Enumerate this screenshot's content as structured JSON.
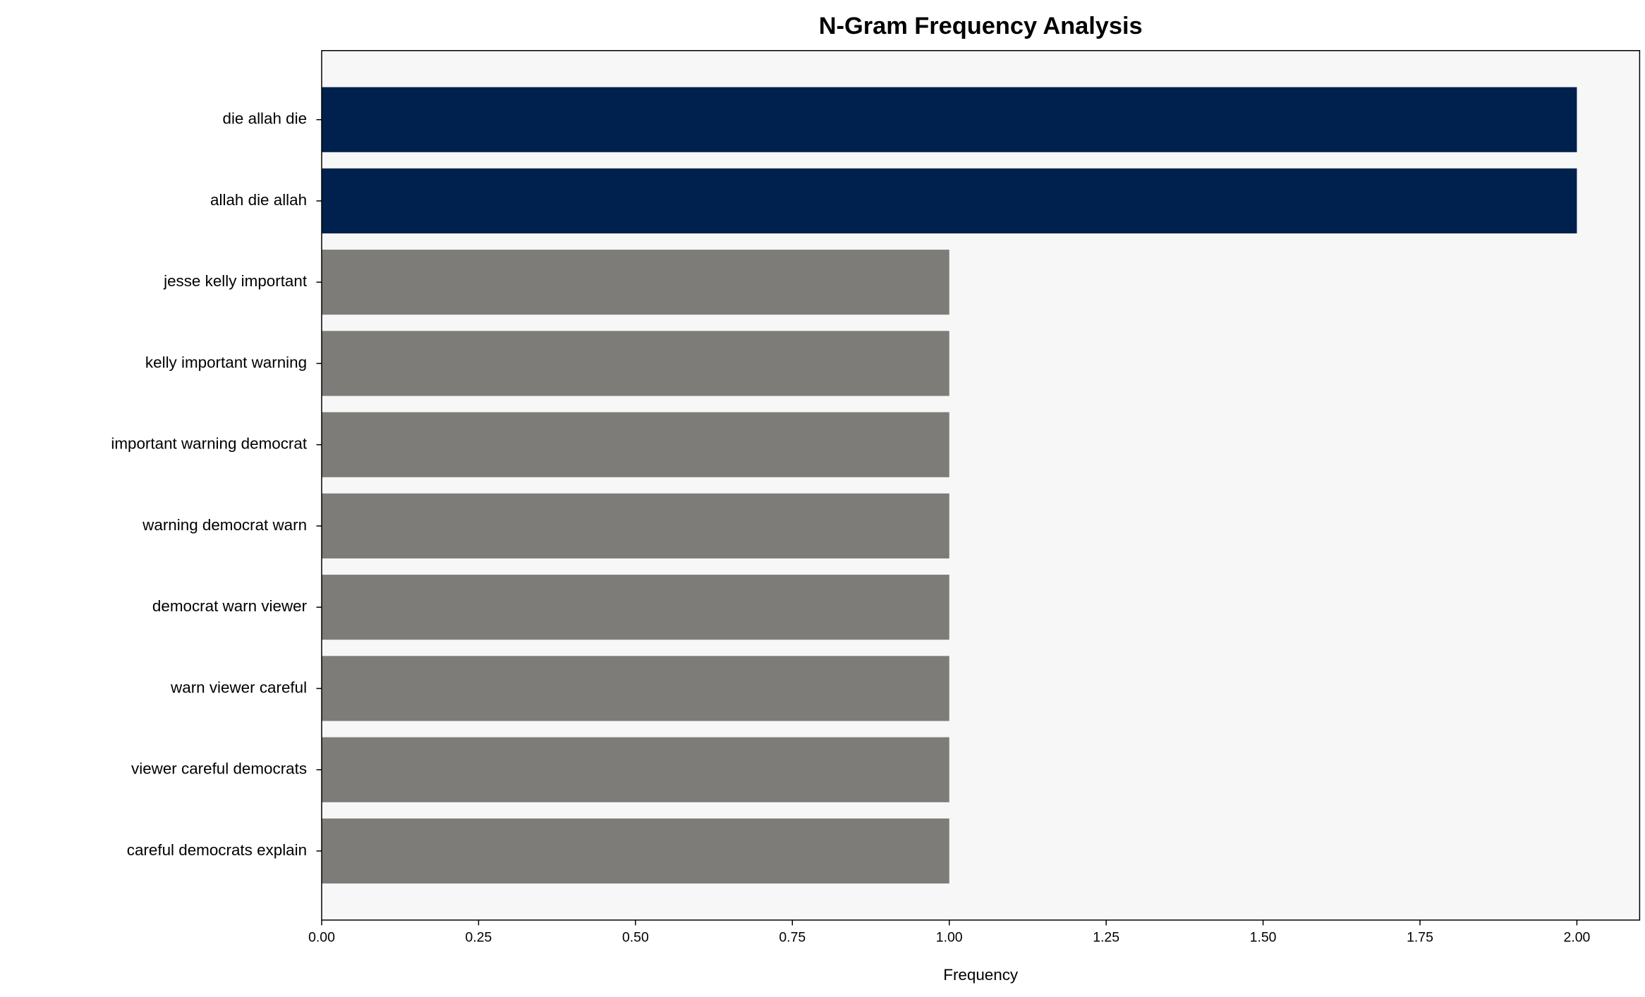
{
  "chart_data": {
    "type": "barh",
    "title": "N-Gram Frequency Analysis",
    "x_label": "Frequency",
    "categories": [
      "die allah die",
      "allah die allah",
      "jesse kelly important",
      "kelly important warning",
      "important warning democrat",
      "warning democrat warn",
      "democrat warn viewer",
      "warn viewer careful",
      "viewer careful democrats",
      "careful democrats explain"
    ],
    "values": [
      2,
      2,
      1,
      1,
      1,
      1,
      1,
      1,
      1,
      1
    ],
    "colors": [
      "#00214d",
      "#00214d",
      "#7d7c78",
      "#7d7c78",
      "#7d7c78",
      "#7d7c78",
      "#7d7c78",
      "#7d7c78",
      "#7d7c78",
      "#7d7c78"
    ],
    "xlim": [
      0,
      2.1
    ],
    "xticks": [
      {
        "value": 0,
        "label": "0.00"
      },
      {
        "value": 0.25,
        "label": "0.25"
      },
      {
        "value": 0.5,
        "label": "0.50"
      },
      {
        "value": 0.75,
        "label": "0.75"
      },
      {
        "value": 1,
        "label": "1.00"
      },
      {
        "value": 1.25,
        "label": "1.25"
      },
      {
        "value": 1.5,
        "label": "1.50"
      },
      {
        "value": 1.75,
        "label": "1.75"
      },
      {
        "value": 2,
        "label": "2.00"
      }
    ],
    "grid": false
  }
}
